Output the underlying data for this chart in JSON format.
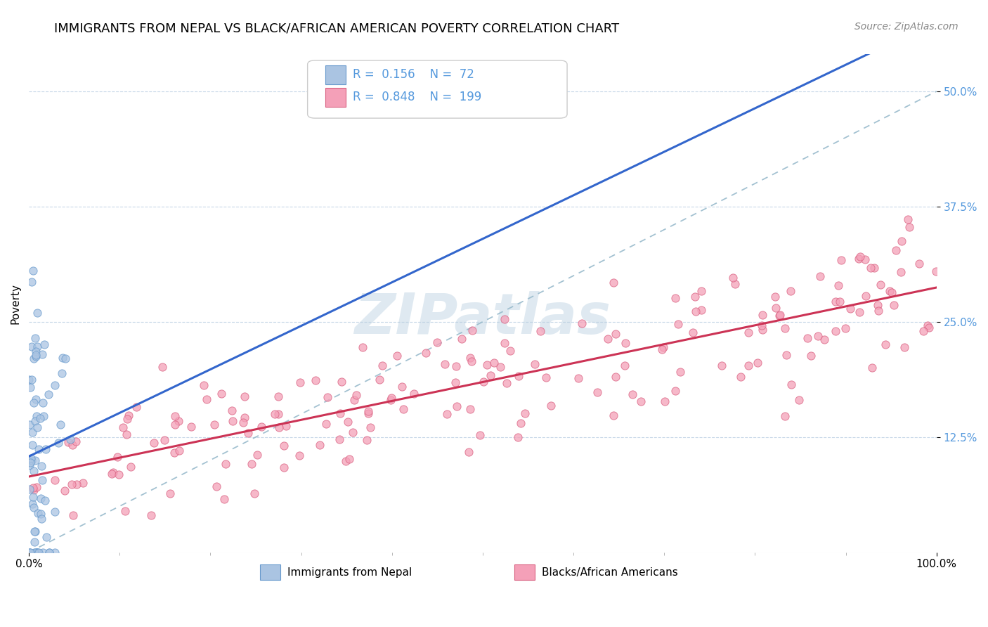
{
  "title": "IMMIGRANTS FROM NEPAL VS BLACK/AFRICAN AMERICAN POVERTY CORRELATION CHART",
  "source": "Source: ZipAtlas.com",
  "ylabel": "Poverty",
  "nepal_color": "#aac4e2",
  "nepal_edge": "#6699cc",
  "black_color": "#f4a0b8",
  "black_edge": "#d96080",
  "nepal_R": 0.156,
  "nepal_N": 72,
  "black_R": 0.848,
  "black_N": 199,
  "trend_nepal_color": "#3366cc",
  "trend_black_color": "#cc3355",
  "dashed_line_color": "#99bbcc",
  "legend_label_nepal": "Immigrants from Nepal",
  "legend_label_black": "Blacks/African Americans",
  "watermark": "ZIPatlas",
  "title_fontsize": 13,
  "tick_color": "#5599dd",
  "yticks": [
    0.125,
    0.25,
    0.375,
    0.5
  ],
  "ytick_labels": [
    "12.5%",
    "25.0%",
    "37.5%",
    "50.0%"
  ]
}
